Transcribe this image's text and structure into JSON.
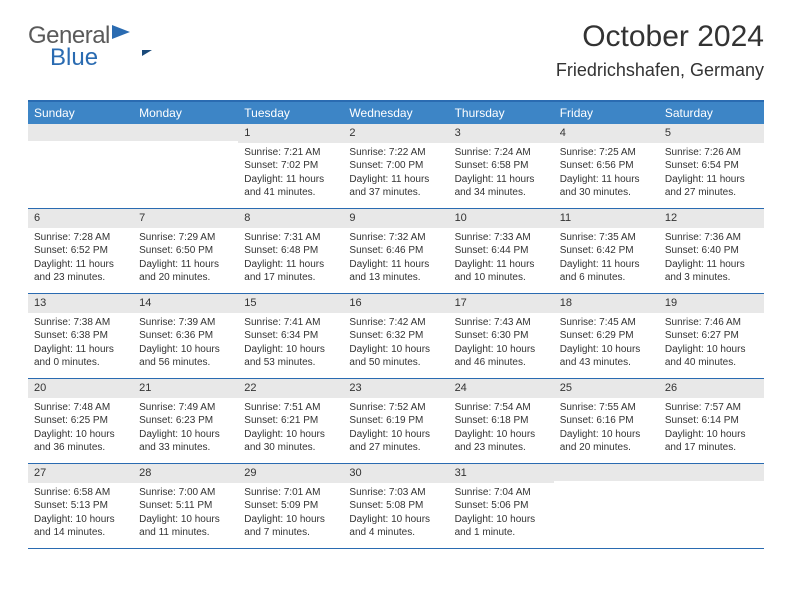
{
  "logo": {
    "part1": "General",
    "part2": "Blue"
  },
  "title": "October 2024",
  "location": "Friedrichshafen, Germany",
  "colors": {
    "header_bg": "#3d85c6",
    "border": "#2a6bb1",
    "daynum_bg": "#e8e8e8",
    "text": "#333333",
    "logo_gray": "#5a5a5a",
    "logo_blue": "#2a6bb1"
  },
  "daynames": [
    "Sunday",
    "Monday",
    "Tuesday",
    "Wednesday",
    "Thursday",
    "Friday",
    "Saturday"
  ],
  "weeks": [
    [
      {
        "n": "",
        "sr": "",
        "ss": "",
        "dl": ""
      },
      {
        "n": "",
        "sr": "",
        "ss": "",
        "dl": ""
      },
      {
        "n": "1",
        "sr": "Sunrise: 7:21 AM",
        "ss": "Sunset: 7:02 PM",
        "dl": "Daylight: 11 hours and 41 minutes."
      },
      {
        "n": "2",
        "sr": "Sunrise: 7:22 AM",
        "ss": "Sunset: 7:00 PM",
        "dl": "Daylight: 11 hours and 37 minutes."
      },
      {
        "n": "3",
        "sr": "Sunrise: 7:24 AM",
        "ss": "Sunset: 6:58 PM",
        "dl": "Daylight: 11 hours and 34 minutes."
      },
      {
        "n": "4",
        "sr": "Sunrise: 7:25 AM",
        "ss": "Sunset: 6:56 PM",
        "dl": "Daylight: 11 hours and 30 minutes."
      },
      {
        "n": "5",
        "sr": "Sunrise: 7:26 AM",
        "ss": "Sunset: 6:54 PM",
        "dl": "Daylight: 11 hours and 27 minutes."
      }
    ],
    [
      {
        "n": "6",
        "sr": "Sunrise: 7:28 AM",
        "ss": "Sunset: 6:52 PM",
        "dl": "Daylight: 11 hours and 23 minutes."
      },
      {
        "n": "7",
        "sr": "Sunrise: 7:29 AM",
        "ss": "Sunset: 6:50 PM",
        "dl": "Daylight: 11 hours and 20 minutes."
      },
      {
        "n": "8",
        "sr": "Sunrise: 7:31 AM",
        "ss": "Sunset: 6:48 PM",
        "dl": "Daylight: 11 hours and 17 minutes."
      },
      {
        "n": "9",
        "sr": "Sunrise: 7:32 AM",
        "ss": "Sunset: 6:46 PM",
        "dl": "Daylight: 11 hours and 13 minutes."
      },
      {
        "n": "10",
        "sr": "Sunrise: 7:33 AM",
        "ss": "Sunset: 6:44 PM",
        "dl": "Daylight: 11 hours and 10 minutes."
      },
      {
        "n": "11",
        "sr": "Sunrise: 7:35 AM",
        "ss": "Sunset: 6:42 PM",
        "dl": "Daylight: 11 hours and 6 minutes."
      },
      {
        "n": "12",
        "sr": "Sunrise: 7:36 AM",
        "ss": "Sunset: 6:40 PM",
        "dl": "Daylight: 11 hours and 3 minutes."
      }
    ],
    [
      {
        "n": "13",
        "sr": "Sunrise: 7:38 AM",
        "ss": "Sunset: 6:38 PM",
        "dl": "Daylight: 11 hours and 0 minutes."
      },
      {
        "n": "14",
        "sr": "Sunrise: 7:39 AM",
        "ss": "Sunset: 6:36 PM",
        "dl": "Daylight: 10 hours and 56 minutes."
      },
      {
        "n": "15",
        "sr": "Sunrise: 7:41 AM",
        "ss": "Sunset: 6:34 PM",
        "dl": "Daylight: 10 hours and 53 minutes."
      },
      {
        "n": "16",
        "sr": "Sunrise: 7:42 AM",
        "ss": "Sunset: 6:32 PM",
        "dl": "Daylight: 10 hours and 50 minutes."
      },
      {
        "n": "17",
        "sr": "Sunrise: 7:43 AM",
        "ss": "Sunset: 6:30 PM",
        "dl": "Daylight: 10 hours and 46 minutes."
      },
      {
        "n": "18",
        "sr": "Sunrise: 7:45 AM",
        "ss": "Sunset: 6:29 PM",
        "dl": "Daylight: 10 hours and 43 minutes."
      },
      {
        "n": "19",
        "sr": "Sunrise: 7:46 AM",
        "ss": "Sunset: 6:27 PM",
        "dl": "Daylight: 10 hours and 40 minutes."
      }
    ],
    [
      {
        "n": "20",
        "sr": "Sunrise: 7:48 AM",
        "ss": "Sunset: 6:25 PM",
        "dl": "Daylight: 10 hours and 36 minutes."
      },
      {
        "n": "21",
        "sr": "Sunrise: 7:49 AM",
        "ss": "Sunset: 6:23 PM",
        "dl": "Daylight: 10 hours and 33 minutes."
      },
      {
        "n": "22",
        "sr": "Sunrise: 7:51 AM",
        "ss": "Sunset: 6:21 PM",
        "dl": "Daylight: 10 hours and 30 minutes."
      },
      {
        "n": "23",
        "sr": "Sunrise: 7:52 AM",
        "ss": "Sunset: 6:19 PM",
        "dl": "Daylight: 10 hours and 27 minutes."
      },
      {
        "n": "24",
        "sr": "Sunrise: 7:54 AM",
        "ss": "Sunset: 6:18 PM",
        "dl": "Daylight: 10 hours and 23 minutes."
      },
      {
        "n": "25",
        "sr": "Sunrise: 7:55 AM",
        "ss": "Sunset: 6:16 PM",
        "dl": "Daylight: 10 hours and 20 minutes."
      },
      {
        "n": "26",
        "sr": "Sunrise: 7:57 AM",
        "ss": "Sunset: 6:14 PM",
        "dl": "Daylight: 10 hours and 17 minutes."
      }
    ],
    [
      {
        "n": "27",
        "sr": "Sunrise: 6:58 AM",
        "ss": "Sunset: 5:13 PM",
        "dl": "Daylight: 10 hours and 14 minutes."
      },
      {
        "n": "28",
        "sr": "Sunrise: 7:00 AM",
        "ss": "Sunset: 5:11 PM",
        "dl": "Daylight: 10 hours and 11 minutes."
      },
      {
        "n": "29",
        "sr": "Sunrise: 7:01 AM",
        "ss": "Sunset: 5:09 PM",
        "dl": "Daylight: 10 hours and 7 minutes."
      },
      {
        "n": "30",
        "sr": "Sunrise: 7:03 AM",
        "ss": "Sunset: 5:08 PM",
        "dl": "Daylight: 10 hours and 4 minutes."
      },
      {
        "n": "31",
        "sr": "Sunrise: 7:04 AM",
        "ss": "Sunset: 5:06 PM",
        "dl": "Daylight: 10 hours and 1 minute."
      },
      {
        "n": "",
        "sr": "",
        "ss": "",
        "dl": ""
      },
      {
        "n": "",
        "sr": "",
        "ss": "",
        "dl": ""
      }
    ]
  ]
}
